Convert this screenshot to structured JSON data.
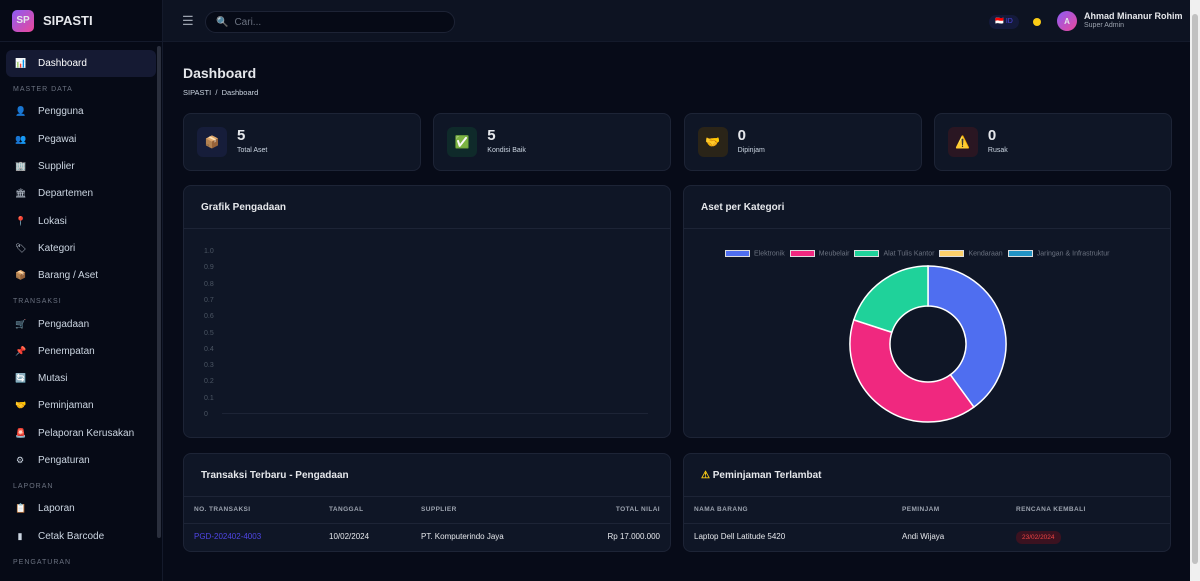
{
  "app": {
    "logo": "SP",
    "name": "SIPASTI"
  },
  "sidebar": {
    "active": {
      "label": "Dashboard",
      "icon": "chart-icon"
    },
    "sections": [
      {
        "title": "MASTER DATA",
        "items": [
          {
            "label": "Pengguna",
            "icon": "user-icon"
          },
          {
            "label": "Pegawai",
            "icon": "users-icon"
          },
          {
            "label": "Supplier",
            "icon": "building-icon"
          },
          {
            "label": "Departemen",
            "icon": "office-icon"
          },
          {
            "label": "Lokasi",
            "icon": "pin-icon"
          },
          {
            "label": "Kategori",
            "icon": "tag-icon"
          },
          {
            "label": "Barang / Aset",
            "icon": "box-icon"
          }
        ]
      },
      {
        "title": "TRANSAKSI",
        "items": [
          {
            "label": "Pengadaan",
            "icon": "cart-icon"
          },
          {
            "label": "Penempatan",
            "icon": "pushpin-icon"
          },
          {
            "label": "Mutasi",
            "icon": "transfer-icon"
          },
          {
            "label": "Peminjaman",
            "icon": "handshake-icon"
          },
          {
            "label": "Pelaporan Kerusakan",
            "icon": "siren-icon"
          },
          {
            "label": "Pengaturan",
            "icon": "gear-icon"
          }
        ]
      },
      {
        "title": "LAPORAN",
        "items": [
          {
            "label": "Laporan",
            "icon": "clipboard-icon"
          },
          {
            "label": "Cetak Barcode",
            "icon": "barcode-icon"
          }
        ]
      },
      {
        "title": "PENGATURAN",
        "items": []
      }
    ]
  },
  "topbar": {
    "search_placeholder": "Cari...",
    "lang": "ID",
    "user_name": "Ahmad Minanur Rohim",
    "user_role": "Super Admin",
    "avatar": "A"
  },
  "page": {
    "title": "Dashboard",
    "breadcrumb": [
      "SIPASTI",
      "Dashboard"
    ]
  },
  "stats": [
    {
      "value": "5",
      "label": "Total Aset",
      "icon": "box-icon",
      "glyph": "📦",
      "bg": "#161d3a"
    },
    {
      "value": "5",
      "label": "Kondisi Baik",
      "icon": "check-icon",
      "glyph": "✅",
      "bg": "#0f2a2a"
    },
    {
      "value": "0",
      "label": "Dipinjam",
      "icon": "handshake-icon",
      "glyph": "🤝",
      "bg": "#2a2418"
    },
    {
      "value": "0",
      "label": "Rusak",
      "icon": "warning-icon",
      "glyph": "⚠️",
      "bg": "#2a1622"
    }
  ],
  "procurement_chart": {
    "title": "Grafik Pengadaan",
    "y_ticks": [
      "1.0",
      "0.9",
      "0.8",
      "0.7",
      "0.6",
      "0.5",
      "0.4",
      "0.3",
      "0.2",
      "0.1",
      "0"
    ]
  },
  "chart_data": {
    "type": "pie",
    "title": "Aset per Kategori",
    "categories": [
      "Elektronik",
      "Meubelair",
      "Alat Tulis Kantor",
      "Kendaraan",
      "Jaringan & Infrastruktur"
    ],
    "values": [
      2,
      2,
      1,
      0,
      0
    ],
    "colors": [
      "#4f6ef0",
      "#f0287f",
      "#1fd29a",
      "#fcd06a",
      "#2293c4"
    ],
    "legend": "top",
    "donut": true
  },
  "transactions": {
    "title": "Transaksi Terbaru - Pengadaan",
    "columns": [
      "NO. TRANSAKSI",
      "TANGGAL",
      "SUPPLIER",
      "TOTAL NILAI"
    ],
    "rows": [
      [
        "PGD-202402-4003",
        "10/02/2024",
        "PT. Komputerindo Jaya",
        "Rp 17.000.000"
      ]
    ]
  },
  "late_loans": {
    "title": "Peminjaman Terlambat",
    "columns": [
      "NAMA BARANG",
      "PEMINJAM",
      "RENCANA KEMBALI"
    ],
    "rows": [
      [
        "Laptop Dell Latitude 5420",
        "Andi Wijaya",
        "23/02/2024"
      ]
    ]
  }
}
